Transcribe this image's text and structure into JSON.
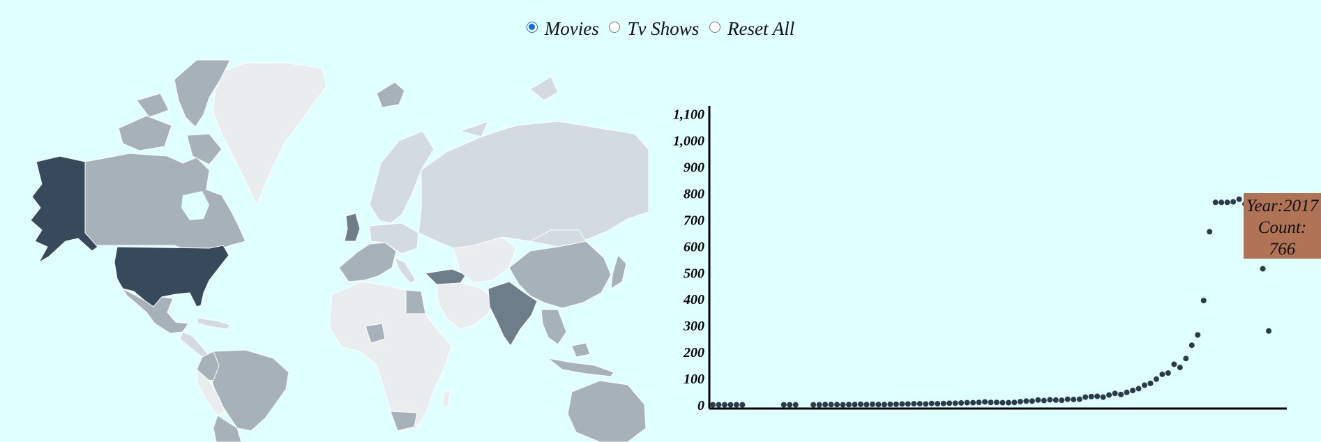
{
  "controls": {
    "options": [
      {
        "label": "Movies",
        "checked": true
      },
      {
        "label": "Tv Shows",
        "checked": false
      },
      {
        "label": "Reset All",
        "checked": false
      }
    ]
  },
  "map": {
    "colors": {
      "ocean": "#e0ffff",
      "darkest": "#374a5c",
      "dark": "#6e7d8a",
      "mid": "#a6b1b9",
      "light": "#d3dbe0",
      "lightest": "#e9edef"
    }
  },
  "tooltip": {
    "year_line": "Year:2017",
    "count_label": "Count:",
    "count_value": "766"
  },
  "chart_data": {
    "type": "scatter",
    "title": "",
    "xlabel": "",
    "ylabel": "",
    "ylim": [
      0,
      1150
    ],
    "xlim": [
      1925,
      2021
    ],
    "yticks": [
      "0",
      "100",
      "200",
      "300",
      "400",
      "500",
      "600",
      "700",
      "800",
      "900",
      "1,000",
      "1,100"
    ],
    "ytick_values": [
      0,
      100,
      200,
      300,
      400,
      500,
      600,
      700,
      800,
      900,
      1000,
      1100
    ],
    "point_color": "#2b3a4a",
    "points": [
      [
        1925,
        1
      ],
      [
        1926,
        1
      ],
      [
        1927,
        1
      ],
      [
        1928,
        1
      ],
      [
        1929,
        1
      ],
      [
        1930,
        1
      ],
      [
        1937,
        1
      ],
      [
        1938,
        1
      ],
      [
        1939,
        1
      ],
      [
        1942,
        1
      ],
      [
        1943,
        1
      ],
      [
        1944,
        2
      ],
      [
        1945,
        2
      ],
      [
        1946,
        2
      ],
      [
        1947,
        1
      ],
      [
        1948,
        2
      ],
      [
        1949,
        2
      ],
      [
        1950,
        3
      ],
      [
        1951,
        2
      ],
      [
        1952,
        3
      ],
      [
        1953,
        2
      ],
      [
        1954,
        2
      ],
      [
        1955,
        3
      ],
      [
        1956,
        3
      ],
      [
        1957,
        4
      ],
      [
        1958,
        4
      ],
      [
        1959,
        5
      ],
      [
        1960,
        5
      ],
      [
        1961,
        4
      ],
      [
        1962,
        6
      ],
      [
        1963,
        5
      ],
      [
        1964,
        6
      ],
      [
        1965,
        7
      ],
      [
        1966,
        7
      ],
      [
        1967,
        8
      ],
      [
        1968,
        9
      ],
      [
        1969,
        9
      ],
      [
        1970,
        10
      ],
      [
        1971,
        12
      ],
      [
        1972,
        10
      ],
      [
        1973,
        10
      ],
      [
        1974,
        9
      ],
      [
        1975,
        9
      ],
      [
        1976,
        10
      ],
      [
        1977,
        13
      ],
      [
        1978,
        15
      ],
      [
        1979,
        15
      ],
      [
        1980,
        19
      ],
      [
        1981,
        17
      ],
      [
        1982,
        20
      ],
      [
        1983,
        19
      ],
      [
        1984,
        18
      ],
      [
        1985,
        22
      ],
      [
        1986,
        21
      ],
      [
        1987,
        22
      ],
      [
        1988,
        30
      ],
      [
        1989,
        32
      ],
      [
        1990,
        33
      ],
      [
        1991,
        30
      ],
      [
        1992,
        38
      ],
      [
        1993,
        44
      ],
      [
        1994,
        40
      ],
      [
        1995,
        48
      ],
      [
        1996,
        55
      ],
      [
        1997,
        62
      ],
      [
        1998,
        75
      ],
      [
        1999,
        82
      ],
      [
        2000,
        98
      ],
      [
        2001,
        116
      ],
      [
        2002,
        121
      ],
      [
        2003,
        154
      ],
      [
        2004,
        142
      ],
      [
        2005,
        176
      ],
      [
        2006,
        226
      ],
      [
        2007,
        265
      ],
      [
        2008,
        395
      ],
      [
        2009,
        655
      ],
      [
        2010,
        766
      ],
      [
        2011,
        766
      ],
      [
        2012,
        766
      ],
      [
        2013,
        768
      ],
      [
        2014,
        778
      ],
      [
        2015,
        760
      ],
      [
        2016,
        762
      ],
      [
        2017,
        766
      ],
      [
        2018,
        515
      ],
      [
        2019,
        280
      ]
    ]
  }
}
